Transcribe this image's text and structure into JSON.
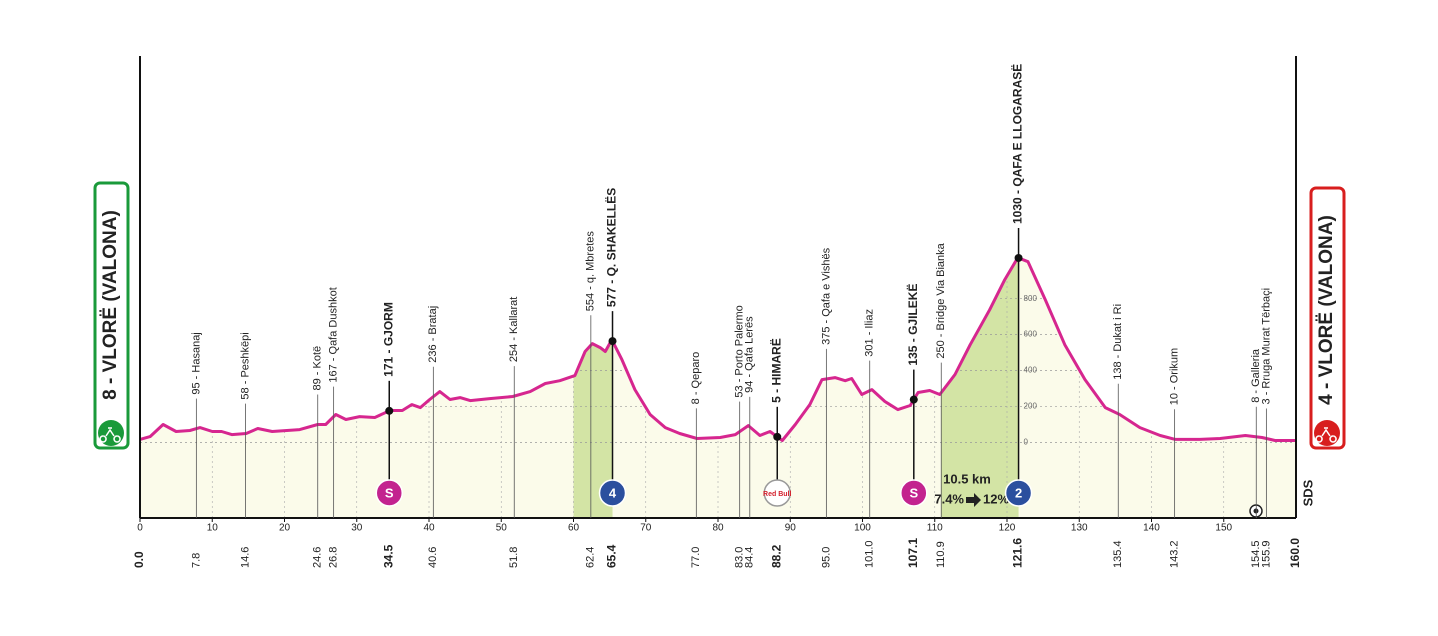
{
  "chart_data": {
    "type": "elevation-profile",
    "xlim": [
      0,
      160
    ],
    "ylim": [
      -420,
      2150
    ],
    "xticks": [
      0,
      10,
      20,
      30,
      40,
      50,
      60,
      70,
      80,
      90,
      100,
      110,
      120,
      130,
      140,
      150
    ],
    "yticks": [
      0,
      200,
      400,
      600,
      800
    ],
    "grid": true,
    "line_color": "#d6268f",
    "fill_color": "#fbfbea",
    "climb_color": "#d3e4a5",
    "distance_km": [
      0,
      1.4,
      3.2,
      5,
      6.9,
      8.3,
      10,
      11.3,
      12.7,
      14.7,
      16.3,
      18.3,
      22.1,
      24.6,
      25.7,
      27.1,
      28.5,
      30.4,
      32.5,
      34.6,
      36.3,
      37.6,
      38.8,
      40.1,
      41.5,
      42.9,
      44.3,
      45.7,
      48.4,
      51.6,
      54,
      56.1,
      58.1,
      60.2,
      61.6,
      62.6,
      63.7,
      64.4,
      65.3,
      66.7,
      68.5,
      70.6,
      72.7,
      74.7,
      77.1,
      80.3,
      82.4,
      84.2,
      85.8,
      87.2,
      88.9,
      90.7,
      92.7,
      94.4,
      96.2,
      97.6,
      98.5,
      99.9,
      101.3,
      103.1,
      104.9,
      106.6,
      107.7,
      109.3,
      110.7,
      112.8,
      114.9,
      117.6,
      119.7,
      121.5,
      122.9,
      125.3,
      128,
      130.8,
      133.6,
      135.6,
      138.4,
      141.2,
      143.3,
      146.7,
      149.5,
      153,
      155.3,
      157.1,
      160
    ],
    "elevation_m": [
      17,
      33,
      100,
      61,
      67,
      83,
      61,
      61,
      44,
      50,
      78,
      61,
      72,
      100,
      100,
      156,
      128,
      144,
      139,
      178,
      178,
      211,
      194,
      239,
      283,
      239,
      250,
      233,
      244,
      256,
      283,
      328,
      344,
      372,
      506,
      550,
      528,
      506,
      572,
      461,
      294,
      156,
      83,
      50,
      22,
      28,
      44,
      94,
      39,
      61,
      11,
      100,
      211,
      350,
      361,
      344,
      356,
      267,
      294,
      228,
      183,
      206,
      278,
      289,
      267,
      378,
      544,
      739,
      906,
      1028,
      1006,
      794,
      544,
      350,
      194,
      156,
      83,
      39,
      17,
      17,
      22,
      39,
      28,
      11,
      11
    ],
    "climbs": [
      {
        "from": 60,
        "to": 65.4
      },
      {
        "from": 110.9,
        "to": 121.6
      }
    ],
    "waypoints": [
      {
        "km": 7.8,
        "label": "95 - Hasanaj"
      },
      {
        "km": 14.6,
        "label": "58 - Peshkëpi"
      },
      {
        "km": 24.6,
        "label": "89 - Kotë"
      },
      {
        "km": 26.8,
        "label": "167 - Qafa Dushkot"
      },
      {
        "km": 34.5,
        "label": "171 - GJORM",
        "major": true,
        "badge": "S",
        "badge_color": "#c3238f",
        "badge_text_color": "#ffffff"
      },
      {
        "km": 40.6,
        "label": "236 - Brataj"
      },
      {
        "km": 51.8,
        "label": "254 - Kallarat"
      },
      {
        "km": 62.4,
        "label": "554 - q. Mbretes"
      },
      {
        "km": 65.4,
        "label": "577 - Q. SHAKELLËS",
        "major": true,
        "badge": "4",
        "badge_color": "#2b4f9e",
        "badge_text_color": "#ffffff"
      },
      {
        "km": {
          "value": 77,
          "label": "77.0"
        },
        "label": "8 - Qeparo"
      },
      {
        "km": {
          "value": 83,
          "label": "83.0"
        },
        "label": "53 - Porto Palermo"
      },
      {
        "km": 84.4,
        "label": "94 - Qafa Lerës"
      },
      {
        "km": 88.2,
        "label": "5 - HIMARË",
        "major": true,
        "badge": "Red Bull",
        "badge_color": "#ffffff",
        "badge_text_color": "#d4202c"
      },
      {
        "km": {
          "value": 95,
          "label": "95.0"
        },
        "label": "375 - Qafa e Vishës"
      },
      {
        "km": {
          "value": 101,
          "label": "101.0"
        },
        "label": "301 - Iliaz"
      },
      {
        "km": 107.1,
        "label": "135 - GJILEKË",
        "major": true,
        "badge": "S",
        "badge_color": "#c3238f",
        "badge_text_color": "#ffffff"
      },
      {
        "km": 110.9,
        "label": "250 - Bridge Via Bianka"
      },
      {
        "km": 121.6,
        "label": "1030 - QAFA E LLOGARASË",
        "major": true,
        "badge": "2",
        "badge_color": "#2b4f9e",
        "badge_text_color": "#ffffff"
      },
      {
        "km": 135.4,
        "label": "138 - Dukat i Ri"
      },
      {
        "km": 143.2,
        "label": "10 - Orikum"
      },
      {
        "km": 154.5,
        "label": "8 - Galleria"
      },
      {
        "km": 155.9,
        "label": "3 - Rruga Murat Tërbaçi"
      }
    ],
    "start": {
      "label": "8 - VLORË (VALONA)",
      "color": "#1a9a3a",
      "km": {
        "value": 0,
        "label": "0.0"
      }
    },
    "finish": {
      "label": "4 - VLORË (VALONA)",
      "color": "#d81e1e",
      "km": {
        "value": 160,
        "label": "160.0"
      }
    },
    "climb_note": {
      "length": "10.5 km",
      "gradient_from": "7.4%",
      "gradient_to": "12%"
    },
    "brand": "SDS"
  }
}
